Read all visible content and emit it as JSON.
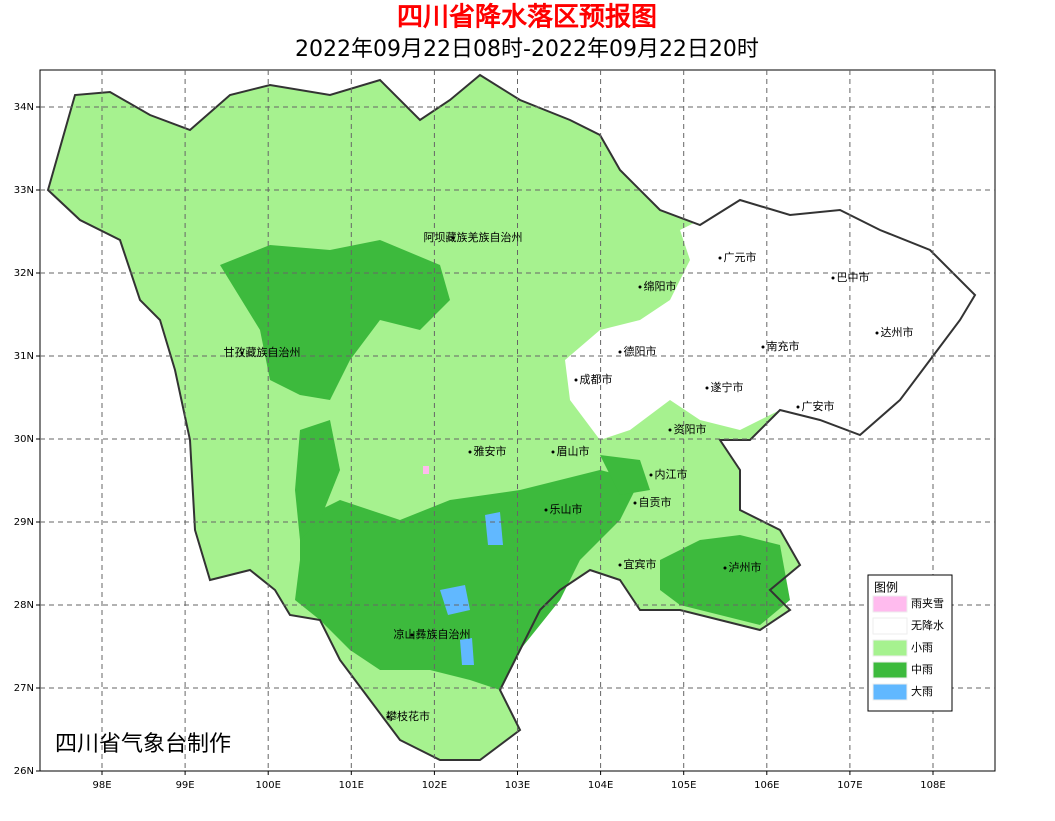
{
  "header": {
    "title": "四川省降水落区预报图",
    "subtitle": "2022年09月22日08时-2022年09月22日20时"
  },
  "map": {
    "lat_labels": [
      "34N",
      "33N",
      "32N",
      "31N",
      "30N",
      "29N",
      "28N",
      "27N",
      "26N"
    ],
    "lon_labels": [
      "98E",
      "99E",
      "100E",
      "101E",
      "102E",
      "103E",
      "104E",
      "105E",
      "106E",
      "107E",
      "108E"
    ],
    "places": [
      "阿坝藏族羌族自治州",
      "广元市",
      "巴中市",
      "绵阳市",
      "达州市",
      "甘孜藏族自治州",
      "德阳市",
      "南充市",
      "成都市",
      "遂宁市",
      "广安市",
      "资阳市",
      "雅安市",
      "眉山市",
      "内江市",
      "自贡市",
      "乐山市",
      "宜宾市",
      "泸州市",
      "凉山彝族自治州",
      "攀枝花市"
    ],
    "legend": {
      "title": "图例",
      "items": [
        {
          "label": "雨夹雪",
          "color": "#ffbbee"
        },
        {
          "label": "无降水",
          "color": "#ffffff"
        },
        {
          "label": "小雨",
          "color": "#a6f28f"
        },
        {
          "label": "中雨",
          "color": "#3dba3d"
        },
        {
          "label": "大雨",
          "color": "#61b8ff"
        }
      ]
    },
    "credit": "四川省气象台制作"
  }
}
